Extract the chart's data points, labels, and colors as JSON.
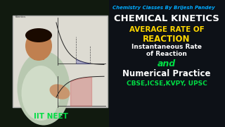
{
  "bg_color": "#0d1117",
  "left_bg": "#1a1a1a",
  "whiteboard_color": "#e8e6e0",
  "title_top": "Chemistry Classes By Brijesh Pandey",
  "title_top_color": "#00aaff",
  "main_title": "CHEMICAL KINETICS",
  "main_title_color": "#ffffff",
  "line1": "AVERAGE RATE OF",
  "line1_color": "#ffd700",
  "line2": "REACTION",
  "line2_color": "#ffd700",
  "line3": "Instantaneous Rate",
  "line3b": "of Reaction",
  "line3_color": "#ffffff",
  "line4": "and",
  "line4_color": "#00dd44",
  "line5": "Numerical Practice",
  "line5_color": "#ffffff",
  "line6": "CBSE,ICSE,KVPY, UPSC",
  "line6_color": "#00dd44",
  "iit_neet_text": "IIT NEET",
  "iit_neet_color": "#00dd44"
}
